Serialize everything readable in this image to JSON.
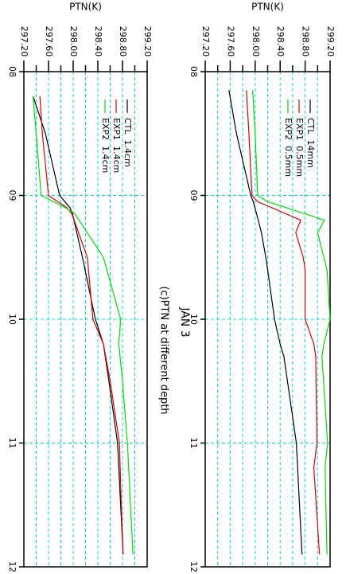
{
  "chart_data": [
    {
      "type": "line",
      "title": "(c)PTN at different depth",
      "subtitle": "JAN 3",
      "y_label": "PTN(K)",
      "xlim": [
        8,
        12
      ],
      "xticks": [
        {
          "value": 8,
          "label": "08"
        },
        {
          "value": 9,
          "label": "09"
        },
        {
          "value": 10,
          "label": "10"
        },
        {
          "value": 11,
          "label": "11"
        },
        {
          "value": 12,
          "label": "12"
        }
      ],
      "ylim": [
        297.2,
        299.2
      ],
      "yticks": [
        {
          "value": 297.2,
          "label": "297.20"
        },
        {
          "value": 297.6,
          "label": "297.60"
        },
        {
          "value": 298,
          "label": "298.00"
        },
        {
          "value": 298.4,
          "label": "298.40"
        },
        {
          "value": 298.8,
          "label": "298.80"
        },
        {
          "value": 299.2,
          "label": "299.20"
        }
      ],
      "minor_yticks": [
        297.4,
        297.8,
        298.2,
        298.6,
        299.0
      ],
      "grid": true,
      "legend": "upper left",
      "x": [
        8.2,
        8.5,
        9.0,
        9.1,
        9.15,
        9.5,
        10.0,
        10.2,
        10.5,
        11.0,
        11.5,
        11.9
      ],
      "series": [
        {
          "name": "CTL  1.4cm",
          "color": "#000000",
          "values": [
            297.35,
            297.55,
            297.78,
            297.95,
            297.99,
            298.15,
            298.36,
            298.49,
            298.58,
            298.72,
            298.77,
            298.81
          ]
        },
        {
          "name": "EXP1  1.4cm",
          "color": "#e00000",
          "values": [
            297.46,
            297.5,
            297.6,
            297.9,
            297.98,
            298.23,
            298.32,
            298.49,
            298.6,
            298.75,
            298.78,
            298.81
          ]
        },
        {
          "name": "EXP2  1.4cm",
          "color": "#00dd00",
          "values": [
            297.35,
            297.4,
            297.48,
            297.88,
            298.03,
            298.49,
            298.77,
            298.74,
            298.8,
            298.88,
            298.93,
            298.97
          ]
        }
      ]
    },
    {
      "type": "line",
      "y_label": "PTN(K)",
      "xlim": [
        8,
        12
      ],
      "xticks": [
        {
          "value": 8,
          "label": "08"
        },
        {
          "value": 9,
          "label": "09"
        },
        {
          "value": 10,
          "label": "10"
        },
        {
          "value": 11,
          "label": "11"
        },
        {
          "value": 12,
          "label": "12"
        }
      ],
      "ylim": [
        297.2,
        299.2
      ],
      "yticks": [
        {
          "value": 297.2,
          "label": "297.20"
        },
        {
          "value": 297.6,
          "label": "297.60"
        },
        {
          "value": 298,
          "label": "298.00"
        },
        {
          "value": 298.4,
          "label": "298.40"
        },
        {
          "value": 298.8,
          "label": "298.80"
        },
        {
          "value": 299.2,
          "label": "299.20"
        }
      ],
      "minor_yticks": [
        297.4,
        297.8,
        298.2,
        298.6,
        299.0
      ],
      "grid": true,
      "legend": "upper left",
      "x": [
        8.15,
        8.5,
        9.0,
        9.05,
        9.2,
        9.3,
        9.5,
        9.6,
        10.0,
        10.2,
        10.3,
        11.0,
        11.2,
        11.9
      ],
      "series": [
        {
          "name": "CTL  14mm",
          "color": "#000000",
          "values": [
            297.58,
            297.7,
            297.93,
            297.97,
            298.05,
            298.1,
            298.17,
            298.2,
            298.31,
            298.4,
            298.46,
            298.66,
            298.68,
            298.75
          ]
        },
        {
          "name": "EXP1  0.5mm",
          "color": "#e00000",
          "values": [
            297.86,
            297.9,
            297.95,
            298.04,
            298.73,
            298.65,
            298.77,
            298.8,
            298.8,
            298.94,
            298.97,
            298.99,
            298.94,
            299.03
          ]
        },
        {
          "name": "EXP2  0.5mm",
          "color": "#00dd00",
          "values": [
            297.96,
            298.0,
            298.04,
            298.2,
            299.11,
            299.0,
            299.1,
            299.15,
            299.2,
            299.1,
            299.07,
            299.16,
            299.12,
            299.15
          ]
        }
      ]
    }
  ]
}
